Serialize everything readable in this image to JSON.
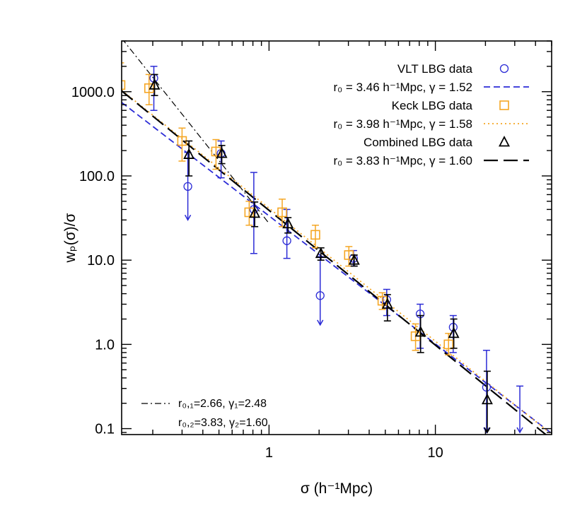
{
  "chart_data": {
    "type": "scatter",
    "title": "",
    "xlabel": "σ (h⁻¹Mpc)",
    "ylabel": "wₚ(σ)/σ",
    "x_scale": "log",
    "y_scale": "log",
    "xlim": [
      0.13,
      50
    ],
    "ylim": [
      0.085,
      4000
    ],
    "grid": false,
    "legend_position": "top-right",
    "x_ticks": [
      {
        "value": 1,
        "label": "1"
      },
      {
        "value": 10,
        "label": "10"
      }
    ],
    "y_ticks": [
      {
        "value": 0.1,
        "label": "0.1"
      },
      {
        "value": 1,
        "label": "1.0"
      },
      {
        "value": 10,
        "label": "10.0"
      },
      {
        "value": 100,
        "label": "100.0"
      },
      {
        "value": 1000,
        "label": "1000.0"
      }
    ],
    "series": [
      {
        "name": "VLT LBG data",
        "marker": "circle",
        "color": "#2b2bd6",
        "points": [
          {
            "x": 0.203,
            "y": 1450,
            "lo": 600,
            "hi": 2000
          },
          {
            "x": 0.325,
            "y": 75,
            "lo": 30,
            "hi": 190,
            "upper_limit": true
          },
          {
            "x": 0.515,
            "y": 185,
            "lo": 95,
            "hi": 260
          },
          {
            "x": 0.81,
            "y": 40,
            "lo": 12,
            "hi": 110
          },
          {
            "x": 1.28,
            "y": 17,
            "lo": 10.5,
            "hi": 40
          },
          {
            "x": 2.03,
            "y": 3.8,
            "lo": 1.7,
            "hi": 11,
            "upper_limit": true
          },
          {
            "x": 3.22,
            "y": 10.5,
            "lo": 8.5,
            "hi": 13
          },
          {
            "x": 5.1,
            "y": 3.4,
            "lo": 2.2,
            "hi": 4.5
          },
          {
            "x": 8.1,
            "y": 2.3,
            "lo": 0.9,
            "hi": 3.0
          },
          {
            "x": 12.8,
            "y": 1.6,
            "lo": 0.8,
            "hi": 2.2
          },
          {
            "x": 20.3,
            "y": 0.31,
            "lo": 0.09,
            "hi": 0.85,
            "upper_limit": true
          },
          {
            "x": 32.2,
            "y": null,
            "lo": 0.09,
            "hi": 0.32,
            "upper_limit": true
          }
        ]
      },
      {
        "name": "Keck LBG data",
        "marker": "square",
        "color": "#f5a623",
        "points": [
          {
            "x": 0.128,
            "y": 1200,
            "lo": 300,
            "hi": 2200
          },
          {
            "x": 0.19,
            "y": 1100,
            "lo": 700,
            "hi": 1600
          },
          {
            "x": 0.3,
            "y": 260,
            "lo": 150,
            "hi": 370
          },
          {
            "x": 0.48,
            "y": 195,
            "lo": 120,
            "hi": 270
          },
          {
            "x": 0.76,
            "y": 37,
            "lo": 26,
            "hi": 50
          },
          {
            "x": 1.2,
            "y": 37,
            "lo": 25,
            "hi": 53
          },
          {
            "x": 1.9,
            "y": 20,
            "lo": 14,
            "hi": 26
          },
          {
            "x": 3.02,
            "y": 11.5,
            "lo": 8.5,
            "hi": 14.5
          },
          {
            "x": 4.8,
            "y": 3.3,
            "lo": 2.6,
            "hi": 4.1
          },
          {
            "x": 7.6,
            "y": 1.25,
            "lo": 0.85,
            "hi": 1.75
          },
          {
            "x": 12.0,
            "y": 1.0,
            "lo": 0.75,
            "hi": 1.35
          }
        ]
      },
      {
        "name": "Combined LBG data",
        "marker": "triangle",
        "color": "#000000",
        "points": [
          {
            "x": 0.205,
            "y": 1200,
            "lo": 900,
            "hi": 1600
          },
          {
            "x": 0.33,
            "y": 180,
            "lo": 100,
            "hi": 260
          },
          {
            "x": 0.52,
            "y": 185,
            "lo": 140,
            "hi": 230
          },
          {
            "x": 0.82,
            "y": 36,
            "lo": 25,
            "hi": 49
          },
          {
            "x": 1.3,
            "y": 27,
            "lo": 21,
            "hi": 32
          },
          {
            "x": 2.05,
            "y": 12,
            "lo": 10,
            "hi": 14
          },
          {
            "x": 3.25,
            "y": 10,
            "lo": 8.5,
            "hi": 11.5
          },
          {
            "x": 5.15,
            "y": 3.0,
            "lo": 1.9,
            "hi": 3.9
          },
          {
            "x": 8.15,
            "y": 1.4,
            "lo": 0.8,
            "hi": 2.2
          },
          {
            "x": 12.9,
            "y": 1.35,
            "lo": 0.9,
            "hi": 2.0
          },
          {
            "x": 20.5,
            "y": 0.22,
            "lo": 0.09,
            "hi": 0.48,
            "upper_limit": true
          }
        ]
      }
    ],
    "fits": [
      {
        "label": "r₀ = 3.46 h⁻¹Mpc, γ = 1.52",
        "r0": 3.46,
        "gamma": 1.52,
        "style": "dashed",
        "color": "#2b2bd6",
        "in_legend": true
      },
      {
        "label": "r₀ = 3.98 h⁻¹Mpc, γ = 1.58",
        "r0": 3.98,
        "gamma": 1.58,
        "style": "dotted",
        "color": "#f5a623",
        "in_legend": true
      },
      {
        "label": "r₀ = 3.83 h⁻¹Mpc, γ = 1.60",
        "r0": 3.83,
        "gamma": 1.6,
        "style": "longdash",
        "color": "#000000",
        "in_legend": true
      },
      {
        "label": "r₀,₁=2.66, γ₁=2.48",
        "r0": 2.66,
        "gamma": 2.48,
        "style": "dashdot",
        "color": "#000000",
        "in_legend": false,
        "x_range": [
          0.13,
          1
        ]
      },
      {
        "label": "r₀,₂=3.83, γ₂=1.60",
        "r0": 3.83,
        "gamma": 1.6,
        "style": "none",
        "color": "#000000",
        "in_legend": false
      }
    ]
  }
}
